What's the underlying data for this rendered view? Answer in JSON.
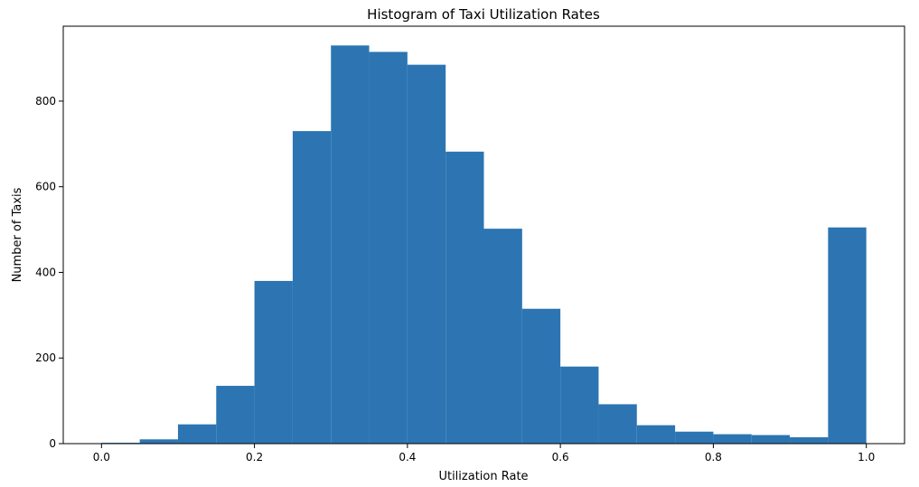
{
  "chart_data": {
    "type": "bar",
    "title": "Histogram of Taxi Utilization Rates",
    "xlabel": "Utilization Rate",
    "ylabel": "Number of Taxis",
    "bin_edges": [
      0.0,
      0.05,
      0.1,
      0.15,
      0.2,
      0.25,
      0.3,
      0.35,
      0.4,
      0.45,
      0.5,
      0.55,
      0.6,
      0.65,
      0.7,
      0.75,
      0.8,
      0.85,
      0.9,
      0.95,
      1.0
    ],
    "values": [
      2,
      10,
      45,
      135,
      380,
      730,
      930,
      915,
      885,
      682,
      502,
      315,
      180,
      92,
      43,
      28,
      22,
      20,
      15,
      505
    ],
    "xlim": [
      -0.05,
      1.05
    ],
    "ylim": [
      0,
      975
    ],
    "xticks": [
      0.0,
      0.2,
      0.4,
      0.6,
      0.8,
      1.0
    ],
    "xtick_labels": [
      "0.0",
      "0.2",
      "0.4",
      "0.6",
      "0.8",
      "1.0"
    ],
    "yticks": [
      0,
      200,
      400,
      600,
      800
    ],
    "ytick_labels": [
      "0",
      "200",
      "400",
      "600",
      "800"
    ],
    "bar_color": "#2c75b2",
    "grid": false
  }
}
